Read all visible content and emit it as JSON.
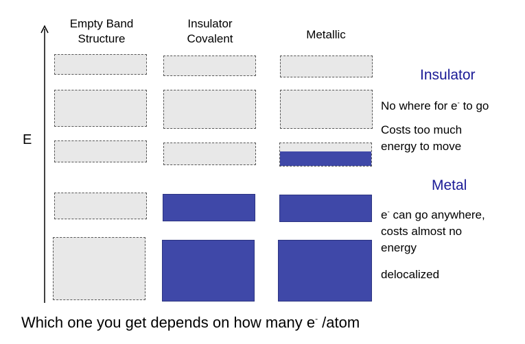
{
  "columns": {
    "empty": {
      "line1": "Empty Band",
      "line2": "Structure"
    },
    "insulator": {
      "line1": "Insulator",
      "line2": "Covalent"
    },
    "metallic": {
      "line1": "Metallic"
    }
  },
  "axis_label": "E",
  "insulator": {
    "heading": "Insulator",
    "note1_pre": "No where for e",
    "note1_sup": "-",
    "note1_post": " to go",
    "note2_line1": "Costs too much",
    "note2_line2": "energy to move"
  },
  "metal": {
    "heading": "Metal",
    "note1_pre": "e",
    "note1_sup": "-",
    "note1_post": " can go anywhere,",
    "note1_line2": "costs almost no",
    "note1_line3": "energy",
    "note2": "delocalized"
  },
  "footer": {
    "pre": "Which one you get depends on how many e",
    "sup": "-",
    "post": " /atom"
  },
  "colors": {
    "filled": "#3f48a8",
    "empty": "#e8e8e8",
    "heading": "#1a1a96"
  },
  "band_states": {
    "empty_structure": [
      "empty",
      "empty",
      "empty",
      "empty",
      "empty"
    ],
    "insulator_covalent": [
      "empty",
      "empty",
      "empty",
      "filled",
      "filled"
    ],
    "metallic": [
      "empty",
      "empty",
      "partially-filled",
      "filled",
      "filled"
    ]
  }
}
